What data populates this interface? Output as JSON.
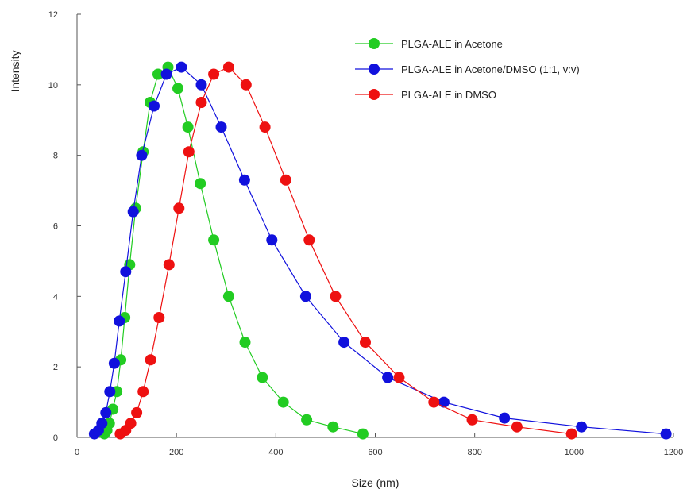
{
  "chart_data": {
    "type": "scatter",
    "xlabel": "Size (nm)",
    "ylabel": "Intensity",
    "xlim": [
      0,
      1200
    ],
    "ylim": [
      0,
      12
    ],
    "xticks": [
      0,
      200,
      400,
      600,
      800,
      1000,
      1200
    ],
    "yticks": [
      0,
      2,
      4,
      6,
      8,
      10,
      12
    ],
    "grid": false,
    "legend_position": "top-right",
    "series": [
      {
        "name": "PLGA-ALE in Acetone",
        "color": "#22cc22",
        "x": [
          55,
          60,
          65,
          72,
          80,
          88,
          96,
          106,
          118,
          133,
          147,
          163,
          183,
          203,
          223,
          248,
          275,
          305,
          338,
          373,
          415,
          462,
          515,
          575
        ],
        "y": [
          0.1,
          0.2,
          0.4,
          0.8,
          1.3,
          2.2,
          3.4,
          4.9,
          6.5,
          8.1,
          9.5,
          10.3,
          10.5,
          9.9,
          8.8,
          7.2,
          5.6,
          4.0,
          2.7,
          1.7,
          1.0,
          0.5,
          0.3,
          0.1
        ]
      },
      {
        "name": "PLGA-ALE in Acetone/DMSO (1:1, v:v)",
        "color": "#1111dd",
        "x": [
          35,
          43,
          50,
          58,
          66,
          75,
          85,
          98,
          113,
          130,
          155,
          180,
          210,
          250,
          290,
          337,
          392,
          460,
          537,
          625,
          738,
          860,
          1015,
          1185
        ],
        "y": [
          0.1,
          0.2,
          0.4,
          0.7,
          1.3,
          2.1,
          3.3,
          4.7,
          6.4,
          8.0,
          9.4,
          10.3,
          10.5,
          10.0,
          8.8,
          7.3,
          5.6,
          4.0,
          2.7,
          1.7,
          1.0,
          0.55,
          0.3,
          0.1
        ]
      },
      {
        "name": "PLGA-ALE in DMSO",
        "color": "#ee1111",
        "x": [
          87,
          98,
          108,
          120,
          133,
          148,
          165,
          185,
          205,
          225,
          250,
          275,
          305,
          340,
          378,
          420,
          467,
          520,
          580,
          648,
          718,
          795,
          885,
          995
        ],
        "y": [
          0.1,
          0.2,
          0.4,
          0.7,
          1.3,
          2.2,
          3.4,
          4.9,
          6.5,
          8.1,
          9.5,
          10.3,
          10.5,
          10.0,
          8.8,
          7.3,
          5.6,
          4.0,
          2.7,
          1.7,
          1.0,
          0.5,
          0.3,
          0.1
        ]
      }
    ]
  }
}
